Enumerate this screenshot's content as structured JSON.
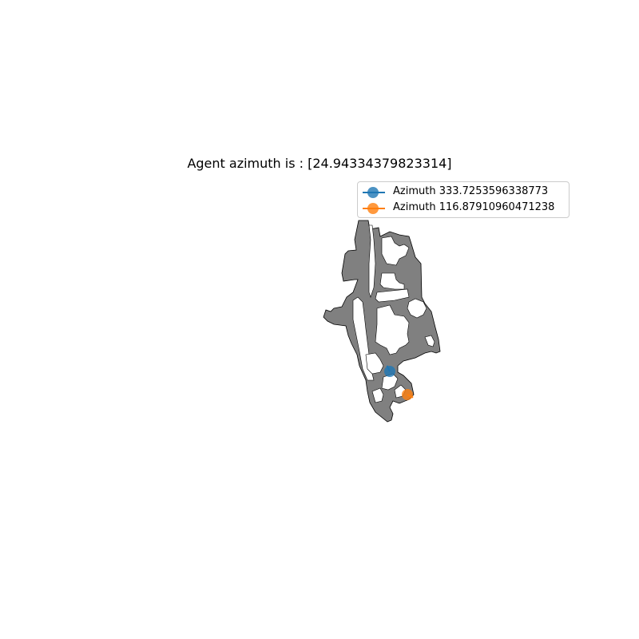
{
  "title": "Agent azimuth is : [24.94334379823314]",
  "legend": {
    "placement": "upper-right",
    "entries": [
      {
        "label": "Azimuth 333.7253596338773",
        "color": "#1f77b4"
      },
      {
        "label": "Azimuth 116.87910960471238",
        "color": "#ff7f0e"
      }
    ]
  },
  "map": {
    "floor_color": "#808080",
    "obstacle_color": "#ffffff",
    "outline_color": "#000000"
  },
  "agents": [
    {
      "azimuth_deg": 333.7253596338773,
      "color": "#1f77b4"
    },
    {
      "azimuth_deg": 116.87910960471238,
      "color": "#ff7f0e"
    }
  ]
}
